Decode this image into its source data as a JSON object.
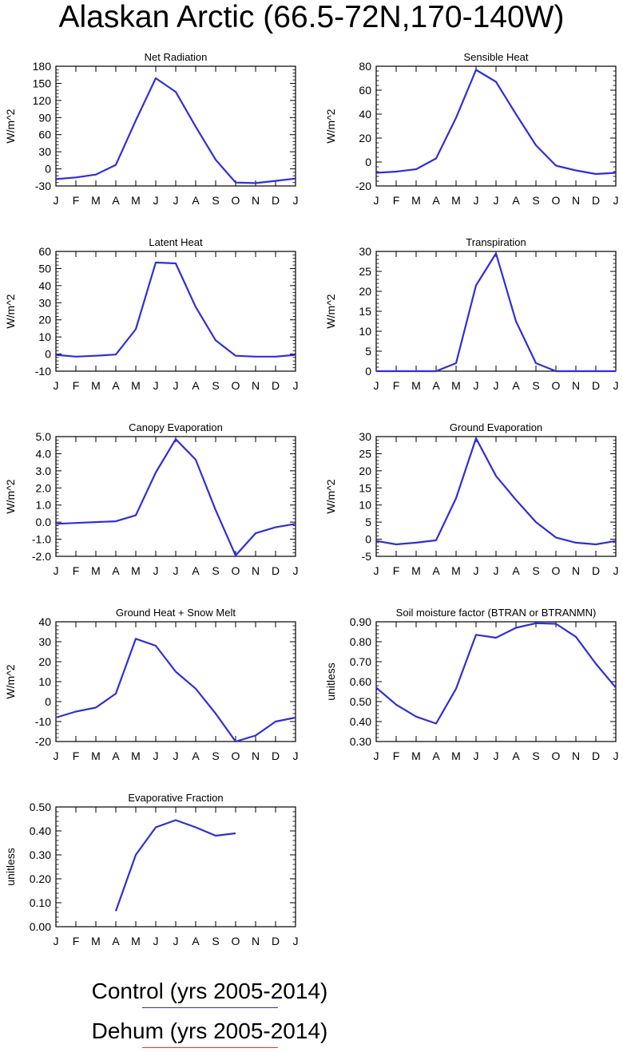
{
  "title": "Alaskan Arctic (66.5-72N,170-140W)",
  "colors": {
    "control": "#2f2fd6",
    "dehum": "#ff3030"
  },
  "legend": [
    {
      "label": "Control (yrs 2005-2014)",
      "color": "#2f2fd6"
    },
    {
      "label": "Dehum (yrs 2005-2014)",
      "color": "#ff3030"
    }
  ],
  "chart_data": [
    {
      "type": "line",
      "title": "Net Radiation",
      "ylabel": "W/m^2",
      "categories": [
        "J",
        "F",
        "M",
        "A",
        "M",
        "J",
        "J",
        "A",
        "S",
        "O",
        "N",
        "D",
        "J"
      ],
      "yticks": [
        "-30",
        "0",
        "30",
        "60",
        "90",
        "120",
        "150",
        "180"
      ],
      "ylim": [
        -30,
        180
      ],
      "series": [
        {
          "values": [
            -18,
            -15,
            -10,
            7,
            85,
            159,
            135,
            74,
            16,
            -24,
            -25,
            -21,
            -17
          ]
        }
      ]
    },
    {
      "type": "line",
      "title": "Sensible Heat",
      "ylabel": "W/m^2",
      "categories": [
        "J",
        "F",
        "M",
        "A",
        "M",
        "J",
        "J",
        "A",
        "S",
        "O",
        "N",
        "D",
        "J"
      ],
      "yticks": [
        "-20",
        "0",
        "20",
        "40",
        "60",
        "80"
      ],
      "ylim": [
        -20,
        80
      ],
      "series": [
        {
          "values": [
            -9,
            -8,
            -6,
            3,
            37,
            77,
            67,
            40,
            14,
            -3,
            -7,
            -10,
            -9
          ]
        }
      ]
    },
    {
      "type": "line",
      "title": "Latent Heat",
      "ylabel": "W/m^2",
      "categories": [
        "J",
        "F",
        "M",
        "A",
        "M",
        "J",
        "J",
        "A",
        "S",
        "O",
        "N",
        "D",
        "J"
      ],
      "yticks": [
        "-10",
        "0",
        "10",
        "20",
        "30",
        "40",
        "50",
        "60"
      ],
      "ylim": [
        -10,
        60
      ],
      "series": [
        {
          "values": [
            -0.5,
            -1.5,
            -1,
            -0.3,
            14.5,
            53.5,
            53,
            27.5,
            8,
            -1,
            -1.5,
            -1.5,
            -0.5
          ]
        }
      ]
    },
    {
      "type": "line",
      "title": "Transpiration",
      "ylabel": "W/m^2",
      "categories": [
        "J",
        "F",
        "M",
        "A",
        "M",
        "J",
        "J",
        "A",
        "S",
        "O",
        "N",
        "D",
        "J"
      ],
      "yticks": [
        "0",
        "5",
        "10",
        "15",
        "20",
        "25",
        "30"
      ],
      "ylim": [
        0,
        30
      ],
      "series": [
        {
          "values": [
            0,
            0,
            0,
            0,
            2,
            21.5,
            29.5,
            12.5,
            2,
            0,
            0,
            0,
            0
          ]
        }
      ]
    },
    {
      "type": "line",
      "title": "Canopy Evaporation",
      "ylabel": "W/m^2",
      "categories": [
        "J",
        "F",
        "M",
        "A",
        "M",
        "J",
        "J",
        "A",
        "S",
        "O",
        "N",
        "D",
        "J"
      ],
      "yticks": [
        "-2.0",
        "-1.0",
        "0.0",
        "1.0",
        "2.0",
        "3.0",
        "4.0",
        "5.0"
      ],
      "ylim": [
        -2,
        5
      ],
      "series": [
        {
          "values": [
            -0.1,
            -0.05,
            0,
            0.05,
            0.4,
            2.9,
            4.85,
            3.65,
            0.7,
            -1.95,
            -0.65,
            -0.3,
            -0.1
          ]
        }
      ]
    },
    {
      "type": "line",
      "title": "Ground Evaporation",
      "ylabel": "W/m^2",
      "categories": [
        "J",
        "F",
        "M",
        "A",
        "M",
        "J",
        "J",
        "A",
        "S",
        "O",
        "N",
        "D",
        "J"
      ],
      "yticks": [
        "-5",
        "0",
        "5",
        "10",
        "15",
        "20",
        "25",
        "30"
      ],
      "ylim": [
        -5,
        30
      ],
      "series": [
        {
          "values": [
            -0.5,
            -1.5,
            -1,
            -0.3,
            12,
            29.5,
            18.5,
            11.5,
            5,
            0.5,
            -1,
            -1.5,
            -0.5
          ]
        }
      ]
    },
    {
      "type": "line",
      "title": "Ground Heat + Snow Melt",
      "ylabel": "W/m^2",
      "categories": [
        "J",
        "F",
        "M",
        "A",
        "M",
        "J",
        "J",
        "A",
        "S",
        "O",
        "N",
        "D",
        "J"
      ],
      "yticks": [
        "-20",
        "-10",
        "0",
        "10",
        "20",
        "30",
        "40"
      ],
      "ylim": [
        -20,
        40
      ],
      "series": [
        {
          "values": [
            -8,
            -5,
            -3,
            4,
            31.5,
            28,
            15,
            6.5,
            -6,
            -20,
            -17,
            -10,
            -8
          ]
        }
      ]
    },
    {
      "type": "line",
      "title": "Soil moisture factor (BTRAN or BTRANMN)",
      "ylabel": "unitless",
      "categories": [
        "J",
        "F",
        "M",
        "A",
        "M",
        "J",
        "J",
        "A",
        "S",
        "O",
        "N",
        "D",
        "J"
      ],
      "yticks": [
        "0.30",
        "0.40",
        "0.50",
        "0.60",
        "0.70",
        "0.80",
        "0.90"
      ],
      "ylim": [
        0.3,
        0.9
      ],
      "series": [
        {
          "values": [
            0.57,
            0.485,
            0.425,
            0.39,
            0.565,
            0.835,
            0.82,
            0.87,
            0.893,
            0.89,
            0.825,
            0.69,
            0.57
          ]
        }
      ]
    },
    {
      "type": "line",
      "title": "Evaporative Fraction",
      "ylabel": "unitless",
      "categories": [
        "J",
        "F",
        "M",
        "A",
        "M",
        "J",
        "J",
        "A",
        "S",
        "O",
        "N",
        "D",
        "J"
      ],
      "yticks": [
        "0.00",
        "0.10",
        "0.20",
        "0.30",
        "0.40",
        "0.50"
      ],
      "ylim": [
        0,
        0.5
      ],
      "series": [
        {
          "values": [
            null,
            null,
            null,
            0.065,
            0.3,
            0.415,
            0.445,
            0.415,
            0.38,
            0.39,
            null,
            null,
            null
          ]
        }
      ]
    }
  ]
}
